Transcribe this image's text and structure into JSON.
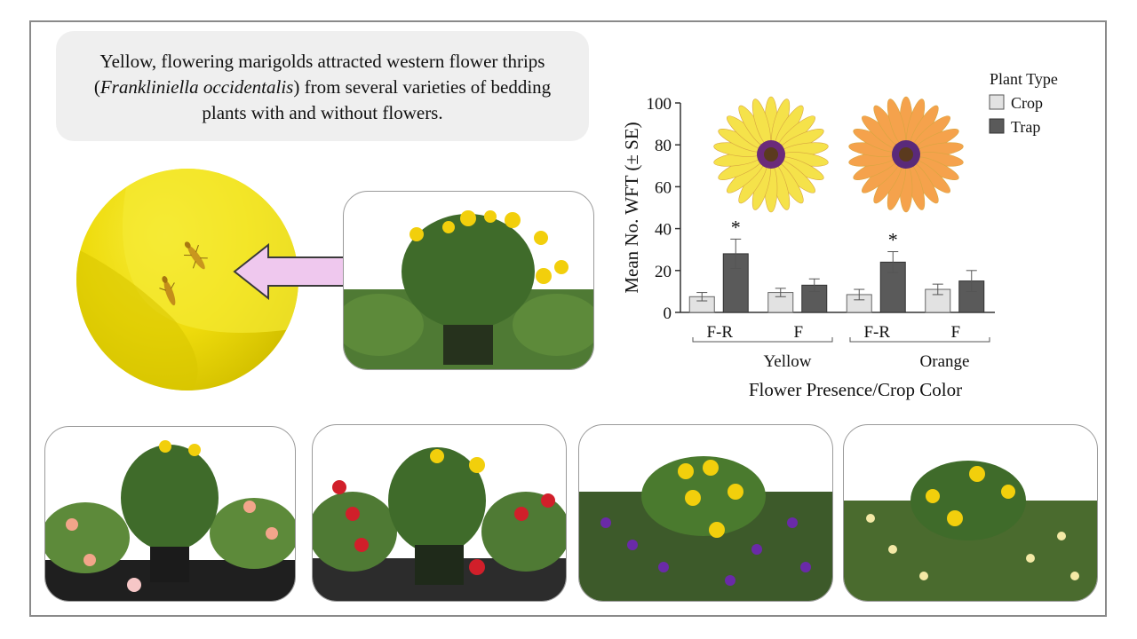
{
  "caption": {
    "part1": "Yellow, flowering marigolds attracted western flower thrips (",
    "species": "Frankliniella occidentalis",
    "part2": ") from several varieties of bedding plants with and without flowers."
  },
  "colors": {
    "crop_fill": "#e2e2e2",
    "trap_fill": "#5a5a5a",
    "marigold": "#f2cf0c",
    "petal_yellow": "#f5e24a",
    "petal_orange": "#f5a24c",
    "foliage": "#3f6b2a"
  },
  "icons": {
    "thrips": "thrips-insect-icon",
    "arrow": "left-arrow-icon"
  },
  "chart_data": {
    "type": "bar",
    "ylabel": "Mean No. WFT (± SE)",
    "xlabel": "Flower Presence/Crop Color",
    "ylim": [
      0,
      100
    ],
    "yticks": [
      0,
      20,
      40,
      60,
      80,
      100
    ],
    "groups": [
      "Yellow",
      "Orange"
    ],
    "categories": [
      "F-R",
      "F",
      "F-R",
      "F"
    ],
    "legend_title": "Plant Type",
    "legend_position": "top-right",
    "series": [
      {
        "name": "Crop",
        "values": [
          7.5,
          9.5,
          8.5,
          11
        ],
        "se": [
          2,
          2,
          2.5,
          2.5
        ]
      },
      {
        "name": "Trap",
        "values": [
          28,
          13,
          24,
          15
        ],
        "se": [
          7,
          3,
          5,
          5
        ]
      }
    ],
    "significance": [
      "*",
      "",
      "*",
      ""
    ]
  }
}
